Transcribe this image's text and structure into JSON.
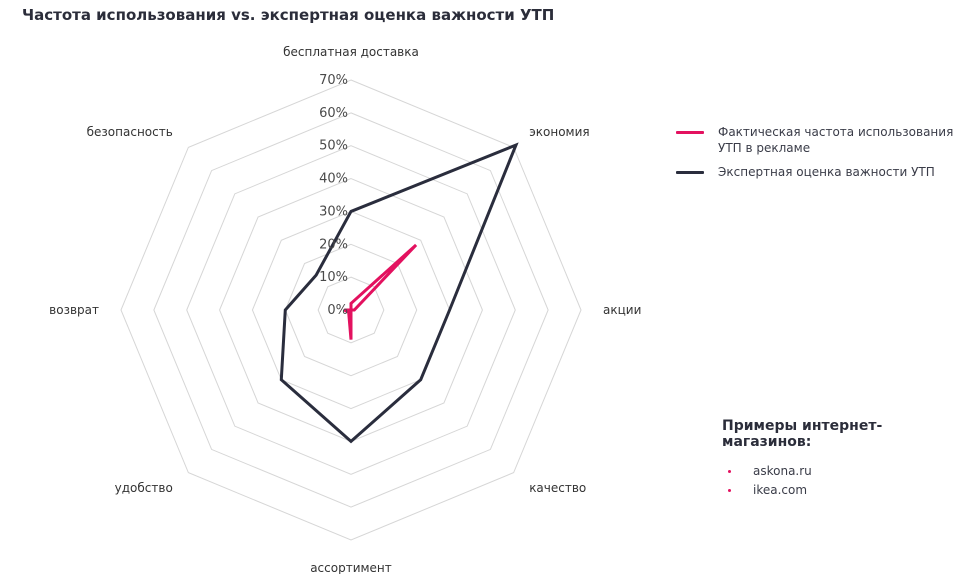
{
  "title": "Частота использования vs. экспертная оценка важности УТП",
  "colors": {
    "actual": "#e3115f",
    "expert": "#2a2d3d",
    "grid": "#d6d6d6",
    "axis_text": "#333333"
  },
  "chart_data": {
    "type": "radar",
    "axes": [
      "бесплатная доставка",
      "экономия",
      "акции",
      "качество",
      "ассортимент",
      "удобство",
      "возврат",
      "безопасность"
    ],
    "rlim": [
      0,
      70
    ],
    "ticks": [
      "0%",
      "10%",
      "20%",
      "30%",
      "40%",
      "50%",
      "60%",
      "70%"
    ],
    "tick_values": [
      0,
      10,
      20,
      30,
      40,
      50,
      60,
      70
    ],
    "series": [
      {
        "name": "Фактическая частота использования УТП в рекламе",
        "color": "#e3115f",
        "values": [
          2,
          28,
          1,
          0,
          9,
          1,
          2,
          0
        ]
      },
      {
        "name": "Экспертная оценка важности УТП",
        "color": "#2a2d3d",
        "values": [
          30,
          71,
          30,
          30,
          40,
          30,
          20,
          15
        ]
      }
    ],
    "grid": true,
    "legend_position": "right"
  },
  "legend": {
    "items": [
      {
        "label": "Фактическая частота использования УТП в рекламе",
        "color": "#e3115f"
      },
      {
        "label": "Экспертная оценка важности УТП",
        "color": "#2a2d3d"
      }
    ]
  },
  "examples": {
    "title": "Примеры интернет-магазинов:",
    "items": [
      "askona.ru",
      "ikea.com"
    ]
  }
}
